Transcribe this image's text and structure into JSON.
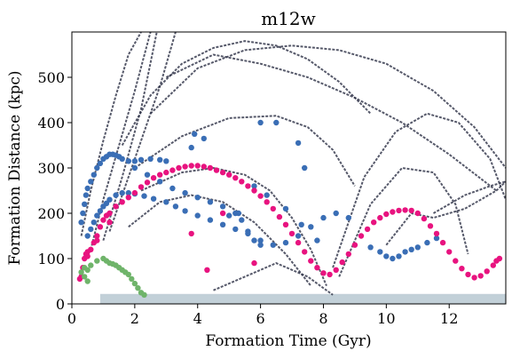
{
  "chart_data": {
    "type": "scatter",
    "title": "m12w",
    "xlabel": "Formation Time (Gyr)",
    "ylabel": "Formation Distance (kpc)",
    "xlim": [
      0,
      13.8
    ],
    "ylim": [
      0,
      600
    ],
    "xticks": [
      0,
      2,
      4,
      6,
      8,
      10,
      12
    ],
    "yticks": [
      0,
      100,
      200,
      300,
      400,
      500
    ],
    "grid": false,
    "colors": {
      "background_tracks": "#2c2f45",
      "disk_band": "#8fa9b8",
      "blue_series": "#3a6eb5",
      "pink_series": "#e8137f",
      "green_series": "#6fb46a"
    },
    "background_tracks": [
      {
        "x": [
          0.3,
          0.6,
          1.0,
          1.4,
          1.8,
          2.2
        ],
        "y": [
          150,
          250,
          360,
          460,
          550,
          600
        ]
      },
      {
        "x": [
          0.6,
          1.0,
          1.5,
          2.0,
          2.5
        ],
        "y": [
          120,
          230,
          350,
          470,
          600
        ]
      },
      {
        "x": [
          1.0,
          1.6,
          2.2,
          2.7
        ],
        "y": [
          140,
          280,
          430,
          600
        ]
      },
      {
        "x": [
          1.2,
          2.0,
          2.8,
          3.3
        ],
        "y": [
          160,
          320,
          480,
          600
        ]
      },
      {
        "x": [
          1.6,
          2.5,
          3.5,
          4.5,
          5.5,
          6.5,
          7.5,
          8.5,
          9.5
        ],
        "y": [
          350,
          460,
          530,
          565,
          580,
          570,
          540,
          490,
          420
        ]
      },
      {
        "x": [
          2.5,
          4.0,
          5.5,
          7.0,
          8.5,
          10.0,
          11.5,
          12.8,
          13.8
        ],
        "y": [
          420,
          520,
          560,
          570,
          560,
          530,
          470,
          390,
          300
        ]
      },
      {
        "x": [
          3.0,
          4.5,
          6.0,
          7.5,
          9.0,
          10.5,
          12.0,
          13.5
        ],
        "y": [
          500,
          550,
          530,
          500,
          455,
          400,
          330,
          250
        ]
      },
      {
        "x": [
          2.0,
          3.5,
          5.0,
          6.5,
          7.5,
          8.3,
          9.0
        ],
        "y": [
          300,
          370,
          410,
          415,
          390,
          340,
          260
        ]
      },
      {
        "x": [
          2.2,
          3.5,
          4.5,
          5.5,
          6.3,
          7.0,
          7.6,
          8.1
        ],
        "y": [
          250,
          290,
          300,
          285,
          250,
          190,
          120,
          40
        ]
      },
      {
        "x": [
          1.8,
          2.8,
          3.8,
          4.8,
          5.8,
          6.8,
          7.6
        ],
        "y": [
          170,
          225,
          240,
          225,
          180,
          110,
          40
        ]
      },
      {
        "x": [
          8.3,
          9.3,
          10.3,
          11.3,
          12.3,
          13.3,
          13.8
        ],
        "y": [
          80,
          280,
          380,
          420,
          400,
          320,
          230
        ]
      },
      {
        "x": [
          8.5,
          9.5,
          10.5,
          11.5,
          12.2,
          12.6
        ],
        "y": [
          60,
          220,
          300,
          290,
          220,
          110
        ]
      },
      {
        "x": [
          10.0,
          10.8,
          11.5,
          12.5,
          13.5,
          13.8
        ],
        "y": [
          130,
          200,
          190,
          210,
          250,
          270
        ]
      },
      {
        "x": [
          11.5,
          12.5,
          13.3,
          13.8
        ],
        "y": [
          200,
          240,
          260,
          270
        ]
      },
      {
        "x": [
          4.5,
          5.5,
          6.5,
          7.5,
          8.3
        ],
        "y": [
          30,
          60,
          90,
          60,
          20
        ]
      }
    ],
    "series": [
      {
        "x": [
          0.3,
          0.35,
          0.4,
          0.45,
          0.5,
          0.6,
          0.7,
          0.8,
          0.9,
          1.0,
          1.1,
          1.2,
          1.3,
          1.4,
          1.5,
          1.6,
          1.8,
          2.0,
          2.2,
          2.5,
          2.8,
          3.0,
          0.5,
          0.6,
          0.7,
          0.8,
          0.9,
          1.0,
          1.1,
          1.2,
          1.4,
          1.6,
          1.8,
          2.0,
          2.3,
          2.6,
          3.0,
          3.3,
          3.6,
          4.0,
          4.4,
          4.8,
          5.2,
          5.6,
          6.0,
          6.4,
          6.8,
          7.2,
          7.6,
          8.0,
          8.4,
          8.8,
          2.0,
          2.4,
          2.8,
          3.2,
          3.6,
          4.0,
          4.4,
          4.8,
          5.2,
          5.4,
          5.6,
          5.8,
          6.0,
          9.5,
          9.8,
          10.0,
          10.2,
          10.4,
          10.6,
          10.8,
          11.0,
          11.3,
          11.6,
          5.8,
          6.2,
          6.8,
          7.3,
          7.8,
          3.8,
          4.2,
          3.9,
          6.0,
          6.5,
          5.3,
          5.0,
          7.2,
          7.4
        ],
        "y": [
          180,
          200,
          220,
          240,
          255,
          270,
          285,
          300,
          310,
          320,
          325,
          330,
          330,
          328,
          325,
          320,
          315,
          315,
          318,
          320,
          318,
          315,
          150,
          165,
          180,
          195,
          205,
          215,
          222,
          230,
          240,
          245,
          245,
          243,
          238,
          232,
          225,
          215,
          205,
          195,
          185,
          175,
          165,
          155,
          140,
          130,
          135,
          150,
          170,
          190,
          200,
          190,
          300,
          285,
          270,
          255,
          245,
          235,
          225,
          215,
          200,
          185,
          160,
          140,
          130,
          125,
          115,
          105,
          100,
          105,
          115,
          120,
          125,
          135,
          145,
          260,
          240,
          210,
          175,
          140,
          345,
          365,
          375,
          400,
          400,
          200,
          195,
          355,
          300
        ]
      },
      {
        "x": [
          0.3,
          0.35,
          0.4,
          0.45,
          0.5,
          0.6,
          0.7,
          0.8,
          0.9,
          1.0,
          1.1,
          1.2,
          1.4,
          1.6,
          1.8,
          2.0,
          2.2,
          2.4,
          2.6,
          2.8,
          3.0,
          3.2,
          3.4,
          3.6,
          3.8,
          4.0,
          4.2,
          4.4,
          4.6,
          4.8,
          5.0,
          5.2,
          5.4,
          5.6,
          5.8,
          6.0,
          6.2,
          6.4,
          6.6,
          6.8,
          7.0,
          7.2,
          7.4,
          7.6,
          7.8,
          8.0,
          8.2,
          8.4,
          8.6,
          8.8,
          9.0,
          9.2,
          9.4,
          9.6,
          9.8,
          10.0,
          10.2,
          10.4,
          10.6,
          10.8,
          11.0,
          11.2,
          11.4,
          11.6,
          11.8,
          12.0,
          12.2,
          12.4,
          12.6,
          12.8,
          13.0,
          13.2,
          13.4,
          13.5,
          13.6,
          0.25,
          0.5,
          0.8,
          1.2,
          3.8,
          4.3,
          5.8,
          4.8
        ],
        "y": [
          60,
          80,
          100,
          110,
          115,
          120,
          135,
          150,
          170,
          185,
          195,
          200,
          215,
          225,
          235,
          245,
          258,
          268,
          278,
          285,
          290,
          295,
          300,
          303,
          305,
          305,
          303,
          300,
          295,
          290,
          285,
          278,
          270,
          260,
          250,
          238,
          225,
          210,
          192,
          175,
          155,
          135,
          115,
          95,
          80,
          68,
          65,
          75,
          92,
          110,
          130,
          150,
          165,
          180,
          190,
          198,
          203,
          206,
          207,
          206,
          200,
          188,
          172,
          155,
          135,
          115,
          95,
          78,
          65,
          58,
          62,
          72,
          85,
          95,
          100,
          55,
          105,
          140,
          180,
          155,
          75,
          90,
          200
        ]
      },
      {
        "x": [
          0.3,
          0.4,
          0.5,
          0.6,
          0.8,
          1.0,
          1.1,
          1.2,
          1.3,
          1.4,
          1.5,
          1.6,
          1.7,
          1.8,
          1.9,
          2.0,
          2.1,
          2.2,
          2.3,
          0.4,
          0.5
        ],
        "y": [
          70,
          80,
          75,
          85,
          95,
          100,
          95,
          90,
          88,
          85,
          80,
          75,
          70,
          65,
          55,
          45,
          35,
          25,
          20,
          60,
          50
        ]
      }
    ]
  }
}
